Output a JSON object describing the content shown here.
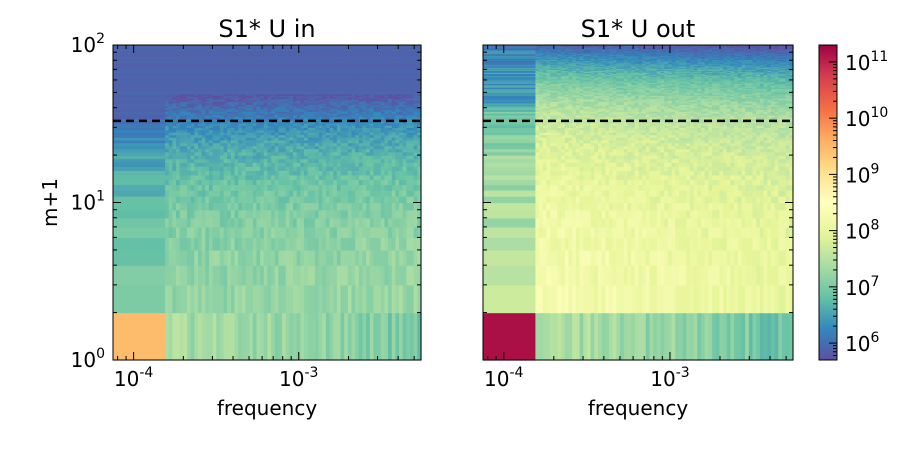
{
  "chart_data": [
    {
      "type": "heatmap",
      "title": "S1* U in",
      "xlabel": "frequency",
      "ylabel": "m+1",
      "x_scale": "log",
      "y_scale": "log",
      "xlim": [
        7.5e-05,
        0.0055
      ],
      "ylim": [
        1,
        100
      ],
      "x_ticks": [
        {
          "value": 0.0001,
          "base": "10",
          "exp": "-4"
        },
        {
          "value": 0.001,
          "base": "10",
          "exp": "-3"
        }
      ],
      "y_ticks": [
        {
          "value": 1,
          "base": "10",
          "exp": "0"
        },
        {
          "value": 10,
          "base": "10",
          "exp": "1"
        },
        {
          "value": 100,
          "base": "10",
          "exp": "2"
        }
      ],
      "reference_line": {
        "y": 33,
        "style": "dashed",
        "color": "#000000"
      },
      "colormap": "Spectral_r",
      "color_scale": "log",
      "color_range": [
        500000,
        200000000000
      ],
      "value_summary": {
        "top_band_value": 800000,
        "low_frequency_m1_value": 3000000000,
        "peak_m_over_frequency": 30000000
      }
    },
    {
      "type": "heatmap",
      "title": "S1* U out",
      "xlabel": "frequency",
      "ylabel": "",
      "x_scale": "log",
      "y_scale": "log",
      "xlim": [
        7.5e-05,
        0.0055
      ],
      "ylim": [
        1,
        100
      ],
      "x_ticks": [
        {
          "value": 0.0001,
          "base": "10",
          "exp": "-4"
        },
        {
          "value": 0.001,
          "base": "10",
          "exp": "-3"
        }
      ],
      "reference_line": {
        "y": 33,
        "style": "dashed",
        "color": "#000000"
      },
      "colormap": "Spectral_r",
      "color_scale": "log",
      "color_range": [
        500000,
        200000000000
      ],
      "value_summary": {
        "top_band_value": 3000000,
        "low_frequency_m1_value": 150000000000,
        "peak_m_over_frequency": 150000000
      }
    }
  ],
  "colorbar": {
    "scale": "log",
    "range": [
      500000,
      200000000000
    ],
    "ticks": [
      {
        "value": 1000000,
        "base": "10",
        "exp": "6"
      },
      {
        "value": 10000000,
        "base": "10",
        "exp": "7"
      },
      {
        "value": 100000000,
        "base": "10",
        "exp": "8"
      },
      {
        "value": 1000000000,
        "base": "10",
        "exp": "9"
      },
      {
        "value": 10000000000,
        "base": "10",
        "exp": "10"
      },
      {
        "value": 100000000000,
        "base": "10",
        "exp": "11"
      }
    ],
    "colors": [
      "#5e4fa2",
      "#3288bd",
      "#66c2a5",
      "#abdda4",
      "#e6f598",
      "#ffffbf",
      "#fee08b",
      "#fdae61",
      "#f46d43",
      "#d53e4f",
      "#9e0142"
    ]
  }
}
